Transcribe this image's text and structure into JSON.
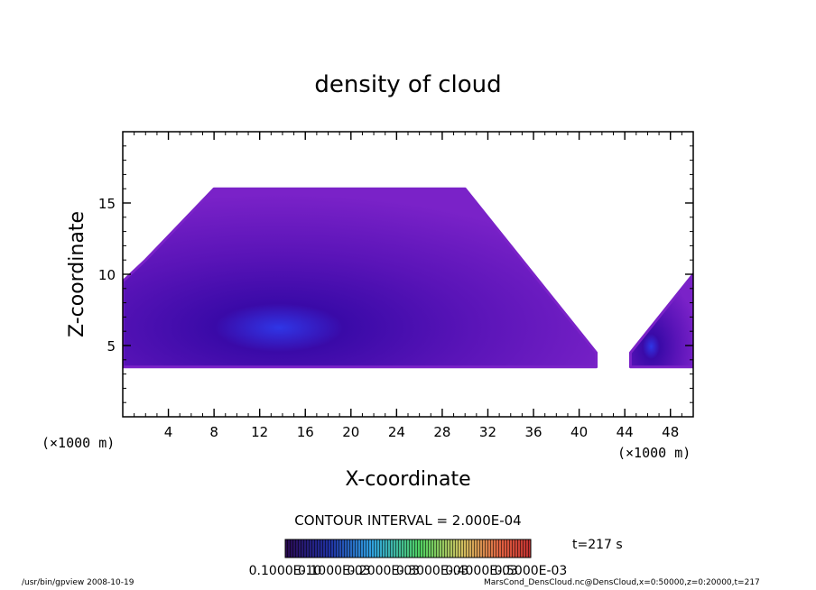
{
  "chart_data": {
    "type": "heatmap",
    "title": "density of cloud",
    "xlabel": "X-coordinate",
    "ylabel": "Z-coordinate",
    "x_unit_left": "(×1000 m)",
    "x_unit_right": "(×1000 m)",
    "xlim": [
      0,
      50
    ],
    "ylim": [
      0,
      20
    ],
    "xticks": [
      4,
      8,
      12,
      16,
      20,
      24,
      28,
      32,
      36,
      40,
      44,
      48
    ],
    "yticks": [
      5,
      10,
      15
    ],
    "cloud_regions": [
      {
        "name": "main",
        "polygon": [
          [
            0,
            3.5
          ],
          [
            0,
            9.5
          ],
          [
            2,
            11
          ],
          [
            8,
            16
          ],
          [
            30,
            16
          ],
          [
            41.5,
            4.5
          ],
          [
            41.5,
            3.5
          ]
        ]
      },
      {
        "name": "right",
        "polygon": [
          [
            44.5,
            3.5
          ],
          [
            44.5,
            4.5
          ],
          [
            50,
            10
          ],
          [
            50,
            3.5
          ]
        ]
      }
    ],
    "contour_interval_label": "CONTOUR INTERVAL = 2.000E-04",
    "time_label": "t=217 s",
    "colorbar_labels": [
      "0.1000E-10",
      "0.1000E-03",
      "0.2000E-03",
      "0.3000E-03",
      "0.4000E-03",
      "0.5000E-03"
    ],
    "colors": {
      "outer": "#7a22c8",
      "mid": "#5a14b8",
      "inner": "#3a0aa8",
      "core": "#2f36e6"
    }
  },
  "footer": {
    "left": "/usr/bin/gpview   2008-10-19",
    "right": "MarsCond_DensCloud.nc@DensCloud,x=0:50000,z=0:20000,t=217"
  }
}
